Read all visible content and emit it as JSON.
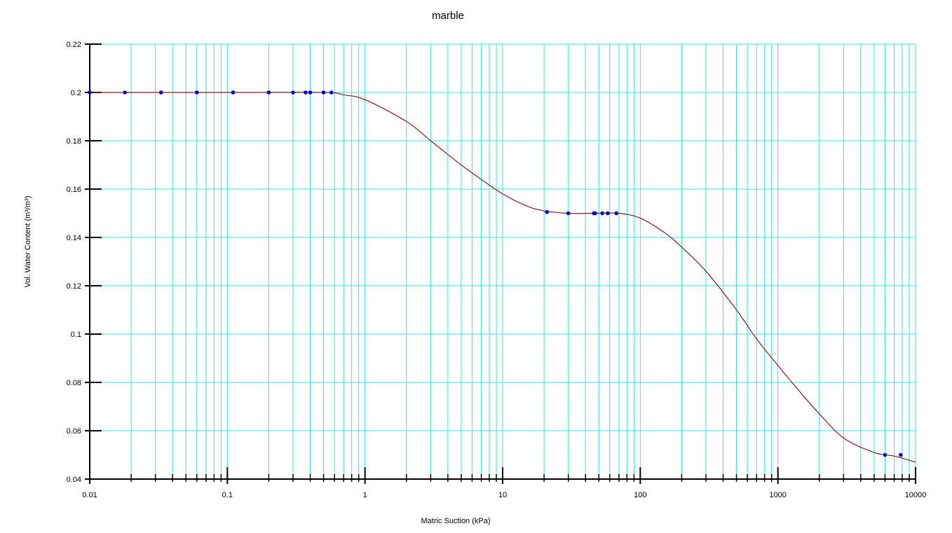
{
  "chart_data": {
    "type": "line",
    "title": "marble",
    "xlabel": "Matric Suction (kPa)",
    "ylabel": "Vol. Water Content (m³/m³)",
    "x_scale": "log",
    "xlim": [
      0.01,
      10000
    ],
    "ylim": [
      0.04,
      0.22
    ],
    "x_ticks": [
      "0.01",
      "0.1",
      "1",
      "10",
      "100",
      "1000",
      "10000"
    ],
    "y_ticks": [
      "0.04",
      "0.06",
      "0.08",
      "0.1",
      "0.12",
      "0.14",
      "0.16",
      "0.18",
      "0.2",
      "0.22"
    ],
    "grid": true,
    "colors": {
      "grid": "#33e6e6",
      "curve": "#8b1a1a",
      "points": "#0000cc",
      "axis": "#000000"
    },
    "series": [
      {
        "kind": "fitted-curve",
        "x": [
          0.01,
          0.1,
          0.5,
          0.7,
          1,
          2,
          3,
          5,
          7,
          10,
          15,
          20,
          30,
          50,
          70,
          100,
          150,
          200,
          300,
          500,
          700,
          1000,
          1500,
          2000,
          3000,
          5000,
          7000,
          10000
        ],
        "y": [
          0.2,
          0.2,
          0.2,
          0.199,
          0.197,
          0.188,
          0.18,
          0.17,
          0.164,
          0.158,
          0.153,
          0.151,
          0.15,
          0.15,
          0.15,
          0.148,
          0.142,
          0.136,
          0.126,
          0.11,
          0.098,
          0.087,
          0.075,
          0.067,
          0.057,
          0.051,
          0.0495,
          0.047
        ]
      },
      {
        "kind": "measured-points",
        "x": [
          0.01,
          0.018,
          0.033,
          0.06,
          0.11,
          0.2,
          0.3,
          0.37,
          0.4,
          0.5,
          0.57,
          21,
          30,
          46,
          47,
          53,
          58,
          67,
          6000,
          7800
        ],
        "y": [
          0.2,
          0.2,
          0.2,
          0.2,
          0.2,
          0.2,
          0.2,
          0.2,
          0.2,
          0.2,
          0.2,
          0.1505,
          0.15,
          0.15,
          0.15,
          0.15,
          0.15,
          0.15,
          0.05,
          0.05
        ]
      }
    ]
  }
}
